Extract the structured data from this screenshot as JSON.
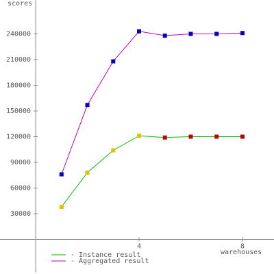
{
  "chart_data": {
    "type": "line",
    "y_label": "scores",
    "x_label": "warehouses",
    "x": [
      1,
      2,
      3,
      4,
      5,
      6,
      7,
      8
    ],
    "series": [
      {
        "name": "- Instance result",
        "color": "#00c000",
        "values": [
          38000,
          78000,
          104000,
          121000,
          119000,
          120000,
          120000,
          120000
        ],
        "marker_colors": [
          "#e0c000",
          "#e0c000",
          "#e0c000",
          "#e0c000",
          "#c00000",
          "#c00000",
          "#c00000",
          "#c00000"
        ]
      },
      {
        "name": "- Aggregated result",
        "color": "#c000c0",
        "values": [
          76000,
          157000,
          208000,
          243000,
          238000,
          240000,
          240000,
          241000
        ],
        "marker_colors": [
          "#0000c0",
          "#0000c0",
          "#0000c0",
          "#0000c0",
          "#0000c0",
          "#0000c0",
          "#0000c0",
          "#0000c0"
        ]
      }
    ],
    "xlim": [
      -1.38,
      9.22
    ],
    "ylim": [
      -38800,
      279600
    ],
    "xticks": [
      4,
      8
    ],
    "yticks": [
      30000,
      60000,
      90000,
      120000,
      150000,
      180000,
      210000,
      240000
    ]
  }
}
